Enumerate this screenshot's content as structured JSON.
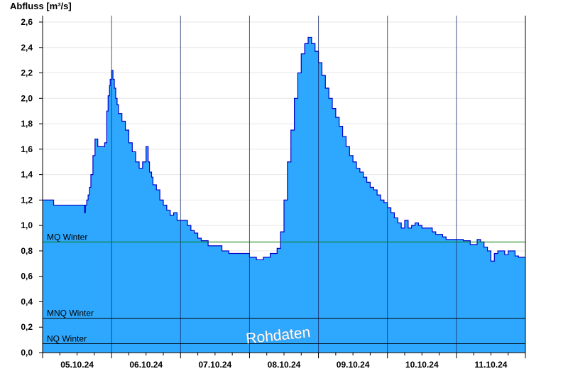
{
  "chart_data": {
    "type": "area",
    "ylabel": "Abfluss [m³/s]",
    "ylim": [
      0,
      2.7
    ],
    "yticks": [
      "0,0",
      "0,2",
      "0,4",
      "0,6",
      "0,8",
      "1,0",
      "1,2",
      "1,4",
      "1,6",
      "1,8",
      "2,0",
      "2,2",
      "2,4",
      "2,6"
    ],
    "xlim": [
      0,
      7
    ],
    "day_labels": [
      "05.10.24",
      "06.10.24",
      "07.10.24",
      "08.10.24",
      "09.10.24",
      "10.10.24",
      "11.10.24"
    ],
    "grid": true,
    "series": [
      {
        "x": [
          0,
          0.13,
          0.16,
          0.6,
          0.61,
          0.62,
          0.64,
          0.66,
          0.68,
          0.7,
          0.73,
          0.76,
          0.8,
          0.85,
          0.9,
          0.93,
          0.95,
          0.97,
          0.98,
          1.0,
          1.02,
          1.04,
          1.06,
          1.08,
          1.1,
          1.12,
          1.15,
          1.2,
          1.25,
          1.3,
          1.35,
          1.4,
          1.45,
          1.5,
          1.53,
          1.55,
          1.58,
          1.6,
          1.62,
          1.65,
          1.7,
          1.75,
          1.8,
          1.85,
          1.9,
          1.95,
          2.0,
          2.05,
          2.1,
          2.15,
          2.2,
          2.25,
          2.3,
          2.4,
          2.5,
          2.6,
          2.7,
          2.8,
          2.9,
          3.0,
          3.1,
          3.2,
          3.3,
          3.4,
          3.45,
          3.5,
          3.55,
          3.6,
          3.65,
          3.7,
          3.75,
          3.8,
          3.85,
          3.9,
          3.95,
          4.0,
          4.05,
          4.1,
          4.15,
          4.2,
          4.25,
          4.3,
          4.35,
          4.4,
          4.45,
          4.5,
          4.55,
          4.6,
          4.65,
          4.7,
          4.75,
          4.8,
          4.85,
          4.9,
          4.95,
          5.0,
          5.05,
          5.1,
          5.15,
          5.2,
          5.25,
          5.3,
          5.35,
          5.4,
          5.45,
          5.5,
          5.55,
          5.6,
          5.65,
          5.7,
          5.75,
          5.8,
          5.85,
          5.9,
          5.95,
          6.0,
          6.1,
          6.2,
          6.3,
          6.35,
          6.4,
          6.45,
          6.5,
          6.55,
          6.6,
          6.65,
          6.7,
          6.75,
          6.8,
          6.85,
          6.9,
          6.95,
          7.0
        ],
        "y": [
          1.2,
          1.2,
          1.16,
          1.16,
          1.1,
          1.16,
          1.2,
          1.24,
          1.3,
          1.4,
          1.55,
          1.68,
          1.62,
          1.62,
          1.65,
          1.9,
          2.02,
          2.1,
          2.15,
          2.22,
          2.15,
          2.08,
          2.0,
          1.95,
          1.88,
          1.88,
          1.82,
          1.75,
          1.65,
          1.58,
          1.5,
          1.45,
          1.5,
          1.62,
          1.5,
          1.42,
          1.38,
          1.32,
          1.32,
          1.28,
          1.2,
          1.16,
          1.12,
          1.08,
          1.1,
          1.04,
          1.04,
          1.04,
          1.0,
          0.96,
          0.94,
          0.9,
          0.88,
          0.84,
          0.84,
          0.8,
          0.78,
          0.78,
          0.78,
          0.75,
          0.73,
          0.75,
          0.78,
          0.82,
          0.95,
          1.2,
          1.5,
          1.75,
          2.0,
          2.2,
          2.35,
          2.43,
          2.48,
          2.43,
          2.37,
          2.28,
          2.18,
          2.08,
          2.0,
          1.92,
          1.85,
          1.78,
          1.7,
          1.62,
          1.55,
          1.5,
          1.45,
          1.42,
          1.38,
          1.34,
          1.3,
          1.28,
          1.24,
          1.2,
          1.18,
          1.14,
          1.1,
          1.06,
          1.02,
          0.98,
          1.04,
          0.98,
          1.0,
          1.02,
          1.0,
          0.98,
          0.98,
          0.98,
          0.95,
          0.93,
          0.93,
          0.91,
          0.89,
          0.89,
          0.89,
          0.89,
          0.88,
          0.85,
          0.89,
          0.87,
          0.83,
          0.8,
          0.72,
          0.78,
          0.8,
          0.8,
          0.77,
          0.8,
          0.8,
          0.76,
          0.75,
          0.75,
          0.75
        ]
      }
    ],
    "reference_lines": [
      {
        "label": "MQ Winter",
        "y": 0.87,
        "color": "#007a00"
      },
      {
        "label": "MNQ Winter",
        "y": 0.27,
        "color": "#000000"
      },
      {
        "label": "NQ Winter",
        "y": 0.07,
        "color": "#000000"
      }
    ],
    "watermark": "Rohdaten",
    "colors": {
      "fill": "#2ea8ff",
      "line": "#0000c8",
      "grid": "#e6e6e6",
      "day_line": "#1a2a6a"
    }
  }
}
